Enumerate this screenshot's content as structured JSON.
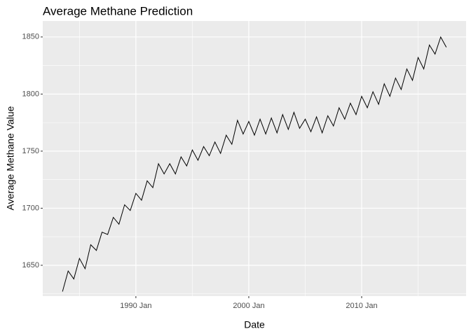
{
  "chart_data": {
    "type": "line",
    "title": "Average Methane Prediction",
    "x_label": "Date",
    "y_label": "Average Methane Value",
    "x": [
      "1983 Jul",
      "1984 Jan",
      "1984 Jul",
      "1985 Jan",
      "1985 Jul",
      "1986 Jan",
      "1986 Jul",
      "1987 Jan",
      "1987 Jul",
      "1988 Jan",
      "1988 Jul",
      "1989 Jan",
      "1989 Jul",
      "1990 Jan",
      "1990 Jul",
      "1991 Jan",
      "1991 Jul",
      "1992 Jan",
      "1992 Jul",
      "1993 Jan",
      "1993 Jul",
      "1994 Jan",
      "1994 Jul",
      "1995 Jan",
      "1995 Jul",
      "1996 Jan",
      "1996 Jul",
      "1997 Jan",
      "1997 Jul",
      "1998 Jan",
      "1998 Jul",
      "1999 Jan",
      "1999 Jul",
      "2000 Jan",
      "2000 Jul",
      "2001 Jan",
      "2001 Jul",
      "2002 Jan",
      "2002 Jul",
      "2003 Jan",
      "2003 Jul",
      "2004 Jan",
      "2004 Jul",
      "2005 Jan",
      "2005 Jul",
      "2006 Jan",
      "2006 Jul",
      "2007 Jan",
      "2007 Jul",
      "2008 Jan",
      "2008 Jul",
      "2009 Jan",
      "2009 Jul",
      "2010 Jan",
      "2010 Jul",
      "2011 Jan",
      "2011 Jul",
      "2012 Jan",
      "2012 Jul",
      "2013 Jan",
      "2013 Jul",
      "2014 Jan",
      "2014 Jul",
      "2015 Jan",
      "2015 Jul",
      "2016 Jan",
      "2016 Jul",
      "2017 Jan",
      "2017 Jul"
    ],
    "series": [
      {
        "name": "Average Methane Value",
        "color": "#000000",
        "values": [
          1627,
          1645,
          1638,
          1656,
          1647,
          1668,
          1663,
          1679,
          1677,
          1692,
          1686,
          1703,
          1698,
          1713,
          1707,
          1724,
          1718,
          1739,
          1730,
          1739,
          1730,
          1745,
          1737,
          1751,
          1742,
          1754,
          1746,
          1758,
          1748,
          1764,
          1756,
          1777,
          1765,
          1776,
          1764,
          1778,
          1765,
          1779,
          1766,
          1782,
          1769,
          1784,
          1770,
          1778,
          1767,
          1780,
          1766,
          1781,
          1772,
          1788,
          1778,
          1792,
          1782,
          1798,
          1788,
          1802,
          1791,
          1809,
          1798,
          1814,
          1804,
          1822,
          1812,
          1832,
          1822,
          1843,
          1835,
          1850,
          1841
        ]
      }
    ],
    "xlim": [
      "1981 Oct",
      "2019 Apr"
    ],
    "xticks": [
      "1990 Jan",
      "2000 Jan",
      "2010 Jan"
    ],
    "xminor": [
      "1985 Jan",
      "1995 Jan",
      "2005 Jan",
      "2015 Jan"
    ],
    "ylim": [
      1623,
      1864
    ],
    "yticks": [
      1650,
      1700,
      1750,
      1800,
      1850
    ],
    "yminor": [
      1625,
      1675,
      1725,
      1775,
      1825
    ],
    "grid": true
  }
}
